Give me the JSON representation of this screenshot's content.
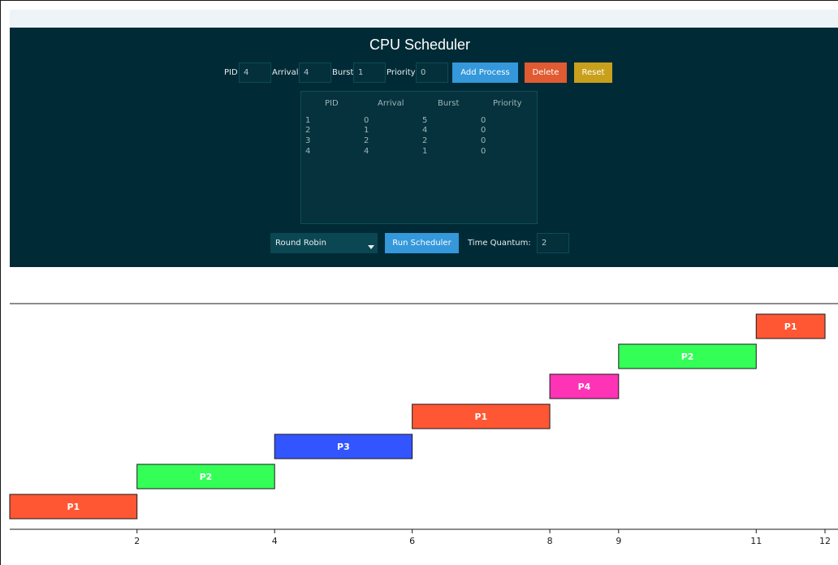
{
  "app": {
    "title": "CPU Scheduler"
  },
  "form": {
    "pid_label": "PID",
    "pid_value": "4",
    "arrival_label": "Arrival",
    "arrival_value": "4",
    "burst_label": "Burst",
    "burst_value": "1",
    "priority_label": "Priority",
    "priority_value": "0",
    "add_label": "Add Process",
    "delete_label": "Delete",
    "reset_label": "Reset"
  },
  "table": {
    "headers": [
      "PID",
      "Arrival",
      "Burst",
      "Priority"
    ],
    "rows": [
      [
        "1",
        "0",
        "5",
        "0"
      ],
      [
        "2",
        "1",
        "4",
        "0"
      ],
      [
        "3",
        "2",
        "2",
        "0"
      ],
      [
        "4",
        "4",
        "1",
        "0"
      ]
    ]
  },
  "controls": {
    "algorithm": "Round Robin",
    "run_label": "Run Scheduler",
    "quantum_label": "Time Quantum:",
    "quantum_value": "2"
  },
  "colors": {
    "panel": "#002b36",
    "add": "#3498db",
    "delete": "#e05a32",
    "reset": "#c9a01c",
    "run": "#3498db",
    "P1": "#ff5733",
    "P2": "#33ff57",
    "P3": "#3355ff",
    "P4": "#ff33b5"
  },
  "chart_data": {
    "type": "gantt",
    "title": "",
    "xlabel": "",
    "ylabel": "",
    "xlim": [
      0.15,
      12
    ],
    "xticks": [
      2,
      4,
      6,
      8,
      9,
      11,
      12
    ],
    "segments": [
      {
        "process": "P1",
        "start": 0,
        "end": 2
      },
      {
        "process": "P2",
        "start": 2,
        "end": 4
      },
      {
        "process": "P3",
        "start": 4,
        "end": 6
      },
      {
        "process": "P1",
        "start": 6,
        "end": 8
      },
      {
        "process": "P4",
        "start": 8,
        "end": 9
      },
      {
        "process": "P2",
        "start": 9,
        "end": 11
      },
      {
        "process": "P1",
        "start": 11,
        "end": 12
      }
    ]
  }
}
